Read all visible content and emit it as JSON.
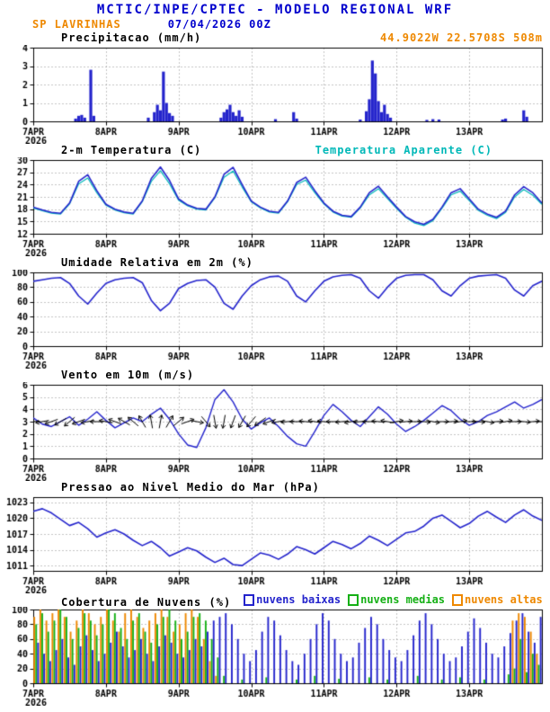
{
  "header": {
    "title": "MCTIC/INPE/CPTEC - MODELO REGIONAL WRF",
    "station": "SP LAVRINHAS",
    "run": "07/04/2026 00Z",
    "location": "44.9022W 22.5708S 508m"
  },
  "colors": {
    "blue": "#2424cc",
    "title_blue": "#0000cd",
    "orange": "#ee8800",
    "cyan": "#00b8b8",
    "green": "#15b015",
    "black": "#000000",
    "grid": "#888888"
  },
  "x_axis": {
    "hours_total": 168,
    "tick_hours": [
      0,
      24,
      48,
      72,
      96,
      120,
      144
    ],
    "tick_labels": [
      "7APR",
      "8APR",
      "9APR",
      "10APR",
      "11APR",
      "12APR",
      "13APR"
    ],
    "year_label": "2026"
  },
  "chart_data": [
    {
      "id": "precipitation",
      "type": "bar",
      "title": "Precipitacao (mm/h)",
      "ylim": [
        0,
        4
      ],
      "yticks": [
        0,
        1,
        2,
        3,
        4
      ],
      "color": "blue",
      "points": [
        [
          14,
          0.15
        ],
        [
          15,
          0.3
        ],
        [
          16,
          0.35
        ],
        [
          17,
          0.2
        ],
        [
          19,
          2.8
        ],
        [
          20,
          0.3
        ],
        [
          38,
          0.2
        ],
        [
          40,
          0.5
        ],
        [
          41,
          0.9
        ],
        [
          42,
          0.6
        ],
        [
          43,
          2.7
        ],
        [
          44,
          1.0
        ],
        [
          45,
          0.45
        ],
        [
          46,
          0.3
        ],
        [
          62,
          0.2
        ],
        [
          63,
          0.5
        ],
        [
          64,
          0.65
        ],
        [
          65,
          0.9
        ],
        [
          66,
          0.5
        ],
        [
          67,
          0.3
        ],
        [
          68,
          0.6
        ],
        [
          69,
          0.25
        ],
        [
          80,
          0.12
        ],
        [
          86,
          0.5
        ],
        [
          87,
          0.15
        ],
        [
          108,
          0.1
        ],
        [
          110,
          0.55
        ],
        [
          111,
          1.2
        ],
        [
          112,
          3.3
        ],
        [
          113,
          2.6
        ],
        [
          114,
          1.1
        ],
        [
          115,
          0.5
        ],
        [
          116,
          0.9
        ],
        [
          117,
          0.4
        ],
        [
          118,
          0.2
        ],
        [
          130,
          0.08
        ],
        [
          132,
          0.12
        ],
        [
          134,
          0.1
        ],
        [
          155,
          0.1
        ],
        [
          156,
          0.15
        ],
        [
          162,
          0.6
        ],
        [
          163,
          0.25
        ]
      ]
    },
    {
      "id": "temperature",
      "type": "line",
      "title": "2-m Temperatura (C)",
      "ylim": [
        12,
        30
      ],
      "yticks": [
        12,
        15,
        18,
        21,
        24,
        27,
        30
      ],
      "x_step": 3,
      "series": [
        {
          "name": "2-m Temperatura (C)",
          "color": "blue",
          "values": [
            18.5,
            17.8,
            17.2,
            17.0,
            19.5,
            24.8,
            26.4,
            22.5,
            19.2,
            18.0,
            17.3,
            17.0,
            20.0,
            25.5,
            28.3,
            25.0,
            20.5,
            19.0,
            18.2,
            18.0,
            21.0,
            26.5,
            28.2,
            24.0,
            20.0,
            18.5,
            17.5,
            17.2,
            20.0,
            24.5,
            25.8,
            22.5,
            19.5,
            17.5,
            16.5,
            16.2,
            18.5,
            22.0,
            23.6,
            21.0,
            18.5,
            16.2,
            14.9,
            14.3,
            15.5,
            18.5,
            22.0,
            23.0,
            20.5,
            18.0,
            16.8,
            16.0,
            17.5,
            21.5,
            23.5,
            22.0,
            19.5
          ]
        },
        {
          "name": "Temperatura Aparente (C)",
          "color": "cyan",
          "values": [
            18.3,
            17.6,
            17.0,
            16.8,
            19.3,
            24.2,
            25.6,
            22.0,
            19.0,
            17.8,
            17.1,
            16.8,
            19.8,
            24.8,
            27.4,
            24.2,
            20.2,
            18.8,
            18.0,
            17.8,
            20.8,
            25.8,
            27.3,
            23.4,
            19.8,
            18.3,
            17.3,
            17.0,
            19.8,
            24.0,
            25.1,
            22.0,
            19.3,
            17.3,
            16.3,
            16.0,
            18.3,
            21.5,
            23.0,
            20.6,
            18.2,
            16.0,
            14.6,
            14.0,
            15.2,
            18.2,
            21.5,
            22.4,
            20.1,
            17.7,
            16.5,
            15.7,
            17.2,
            21.0,
            22.8,
            21.4,
            19.2
          ]
        }
      ]
    },
    {
      "id": "relative-humidity",
      "type": "line",
      "title": "Umidade Relativa em 2m (%)",
      "ylim": [
        0,
        100
      ],
      "yticks": [
        0,
        20,
        40,
        60,
        80,
        100
      ],
      "x_step": 3,
      "series": [
        {
          "name": "Umidade Relativa em 2m (%)",
          "color": "blue",
          "values": [
            88,
            90,
            92,
            93,
            85,
            68,
            57,
            72,
            85,
            90,
            92,
            93,
            86,
            62,
            48,
            58,
            78,
            85,
            89,
            90,
            80,
            58,
            50,
            68,
            82,
            90,
            94,
            95,
            88,
            68,
            60,
            75,
            88,
            94,
            96,
            97,
            92,
            75,
            65,
            80,
            92,
            96,
            97,
            97,
            90,
            75,
            68,
            82,
            92,
            95,
            96,
            97,
            92,
            76,
            68,
            82,
            88
          ]
        }
      ]
    },
    {
      "id": "wind-10m",
      "type": "wind",
      "title": "Vento em 10m (m/s)",
      "ylim": [
        0,
        6
      ],
      "yticks": [
        0,
        1,
        2,
        3,
        4,
        5,
        6
      ],
      "x_step": 3,
      "series": [
        {
          "name": "Vento em 10m (m/s)",
          "color": "blue",
          "values": [
            3.3,
            2.8,
            2.6,
            3.0,
            3.4,
            2.7,
            3.2,
            3.8,
            3.1,
            2.5,
            2.9,
            3.3,
            3.0,
            3.6,
            4.1,
            3.2,
            2.0,
            1.1,
            0.9,
            2.5,
            4.8,
            5.6,
            4.6,
            3.2,
            2.4,
            2.9,
            3.3,
            2.6,
            1.8,
            1.2,
            1.0,
            2.2,
            3.5,
            4.4,
            3.8,
            3.1,
            2.6,
            3.4,
            4.2,
            3.6,
            2.8,
            2.2,
            2.6,
            3.1,
            3.7,
            4.3,
            3.9,
            3.2,
            2.7,
            3.0,
            3.5,
            3.8,
            4.2,
            4.6,
            4.1,
            4.4,
            4.8
          ]
        }
      ],
      "arrows": {
        "y_level": 3,
        "x_step": 3,
        "angles_deg": [
          185,
          190,
          200,
          210,
          220,
          200,
          190,
          180,
          170,
          160,
          150,
          140,
          120,
          100,
          80,
          60,
          40,
          20,
          350,
          310,
          280,
          260,
          250,
          240,
          230,
          215,
          200,
          190,
          185,
          180,
          175,
          170,
          175,
          180,
          185,
          190,
          185,
          180,
          175,
          170,
          10,
          5,
          0,
          355,
          350,
          0,
          5,
          10,
          0,
          355,
          350,
          5,
          10,
          0,
          355,
          5,
          0
        ]
      }
    },
    {
      "id": "mslp",
      "type": "line",
      "title": "Pressao ao Nivel Medio do Mar (hPa)",
      "ylim": [
        1010,
        1024
      ],
      "yticks": [
        1011,
        1014,
        1017,
        1020,
        1023
      ],
      "x_step": 3,
      "series": [
        {
          "name": "Pressao ao Nivel Medio do Mar (hPa)",
          "color": "blue",
          "values": [
            1021.3,
            1021.8,
            1021.0,
            1019.8,
            1018.6,
            1019.2,
            1018.0,
            1016.4,
            1017.2,
            1017.8,
            1017.0,
            1015.8,
            1014.8,
            1015.6,
            1014.4,
            1012.8,
            1013.6,
            1014.4,
            1013.8,
            1012.6,
            1011.6,
            1012.4,
            1011.2,
            1011.0,
            1012.2,
            1013.4,
            1013.0,
            1012.2,
            1013.2,
            1014.6,
            1014.0,
            1013.2,
            1014.4,
            1015.6,
            1015.0,
            1014.2,
            1015.2,
            1016.6,
            1015.8,
            1014.8,
            1016.0,
            1017.2,
            1017.5,
            1018.5,
            1020.0,
            1020.6,
            1019.4,
            1018.2,
            1019.0,
            1020.4,
            1021.3,
            1020.2,
            1019.2,
            1020.6,
            1021.6,
            1020.4,
            1019.6
          ]
        }
      ]
    },
    {
      "id": "cloud-cover",
      "type": "cloudbar",
      "title": "Cobertura de Nuvens (%)",
      "ylim": [
        0,
        100
      ],
      "yticks": [
        0,
        20,
        40,
        60,
        80,
        100
      ],
      "x_step": 2,
      "series": [
        {
          "name": "nuvens baixas",
          "color": "blue",
          "values": [
            55,
            40,
            30,
            45,
            60,
            35,
            25,
            50,
            65,
            45,
            30,
            40,
            55,
            70,
            50,
            35,
            45,
            60,
            40,
            30,
            50,
            65,
            55,
            40,
            35,
            45,
            60,
            50,
            70,
            85,
            90,
            95,
            80,
            60,
            40,
            30,
            45,
            70,
            90,
            85,
            65,
            45,
            30,
            25,
            40,
            60,
            80,
            95,
            85,
            60,
            40,
            30,
            35,
            55,
            75,
            90,
            80,
            60,
            45,
            35,
            30,
            45,
            65,
            85,
            95,
            80,
            60,
            40,
            30,
            35,
            50,
            70,
            88,
            75,
            55,
            40,
            35,
            50,
            68,
            85,
            95,
            70,
            55,
            90
          ]
        },
        {
          "name": "nuvens medias",
          "color": "green",
          "values": [
            80,
            95,
            70,
            85,
            100,
            90,
            60,
            75,
            95,
            85,
            65,
            80,
            100,
            95,
            75,
            60,
            85,
            95,
            70,
            55,
            80,
            90,
            100,
            85,
            60,
            70,
            90,
            95,
            85,
            60,
            35,
            10,
            0,
            0,
            5,
            0,
            0,
            0,
            8,
            0,
            0,
            0,
            0,
            5,
            0,
            0,
            10,
            0,
            0,
            0,
            6,
            0,
            0,
            0,
            0,
            8,
            0,
            0,
            5,
            0,
            0,
            0,
            0,
            10,
            0,
            0,
            0,
            5,
            0,
            0,
            8,
            0,
            0,
            0,
            5,
            0,
            0,
            0,
            12,
            20,
            60,
            15,
            40,
            25
          ]
        },
        {
          "name": "nuvens altas",
          "color": "orange",
          "values": [
            90,
            100,
            85,
            95,
            100,
            90,
            70,
            85,
            100,
            95,
            80,
            90,
            100,
            85,
            70,
            95,
            100,
            90,
            75,
            85,
            95,
            100,
            90,
            70,
            80,
            95,
            100,
            90,
            60,
            30,
            10,
            0,
            0,
            0,
            0,
            0,
            0,
            0,
            0,
            0,
            0,
            0,
            0,
            0,
            0,
            0,
            0,
            0,
            0,
            0,
            0,
            0,
            0,
            0,
            0,
            0,
            0,
            0,
            0,
            0,
            0,
            0,
            0,
            0,
            0,
            0,
            0,
            0,
            0,
            0,
            0,
            0,
            0,
            0,
            0,
            0,
            0,
            0,
            0,
            85,
            95,
            90,
            70,
            40
          ]
        }
      ]
    }
  ]
}
